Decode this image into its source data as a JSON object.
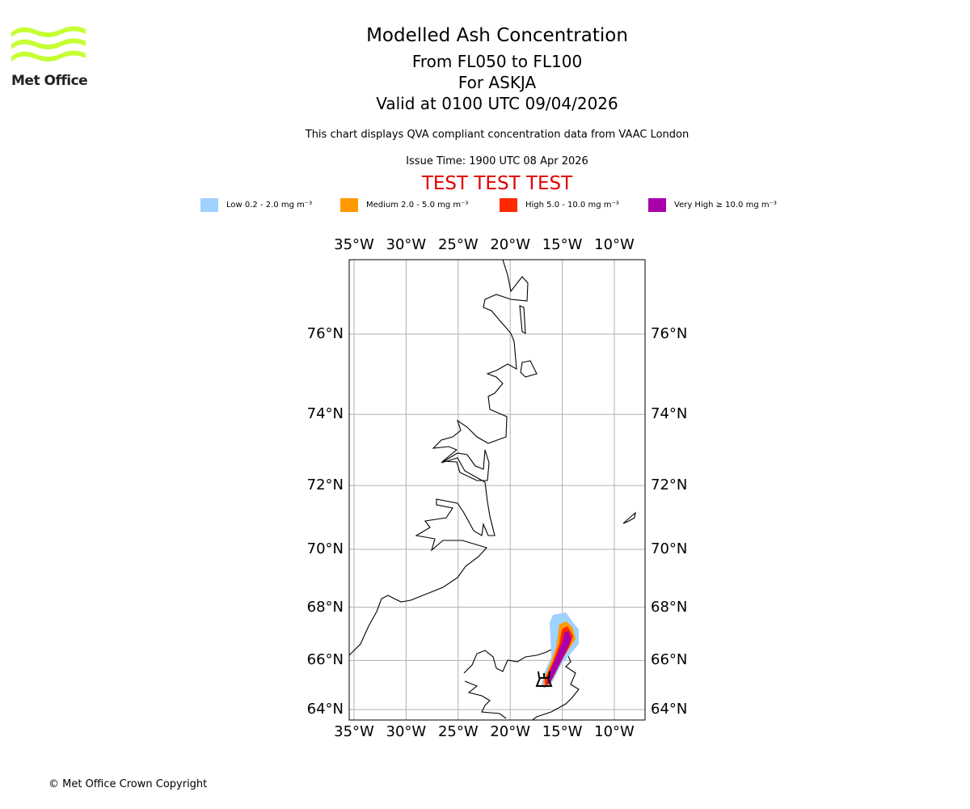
{
  "logo": {
    "text": "Met Office",
    "color": "#c6ff33"
  },
  "header": {
    "title": "Modelled Ash Concentration",
    "levels": "From FL050 to FL100",
    "volcano": "For ASKJA",
    "valid": "Valid at 0100 UTC 09/04/2026",
    "description": "This chart displays QVA compliant concentration data from VAAC London",
    "issue_time": "Issue Time: 1900 UTC 08 Apr 2026",
    "test_banner": "TEST TEST TEST"
  },
  "legend": [
    {
      "label": "Low 0.2 - 2.0 mg m⁻³",
      "color": "#a0d2ff"
    },
    {
      "label": "Medium 2.0 - 5.0 mg m⁻³",
      "color": "#ff9900"
    },
    {
      "label": "High 5.0 - 10.0 mg m⁻³",
      "color": "#ff2800"
    },
    {
      "label": "Very High ≥ 10.0 mg m⁻³",
      "color": "#aa00aa"
    }
  ],
  "chart_data": {
    "type": "map",
    "projection": "mercator",
    "lon_range": [
      -34.5,
      -6
    ],
    "lat_range": [
      63.8,
      77.8
    ],
    "lon_ticks": [
      -35,
      -30,
      -25,
      -20,
      -15,
      -10
    ],
    "lon_labels": [
      "35°W",
      "30°W",
      "25°W",
      "20°W",
      "15°W",
      "10°W"
    ],
    "lat_ticks": [
      64,
      66,
      68,
      70,
      72,
      74,
      76
    ],
    "lat_labels": [
      "64°N",
      "66°N",
      "68°N",
      "70°N",
      "72°N",
      "74°N",
      "76°N"
    ],
    "volcano": {
      "name": "ASKJA",
      "lon": -16.8,
      "lat": 65.05
    },
    "plume_extent": "from Askja north-northeast to about 67.5°N, 14.5°W"
  },
  "footer": {
    "copyright": "© Met Office Crown Copyright"
  }
}
